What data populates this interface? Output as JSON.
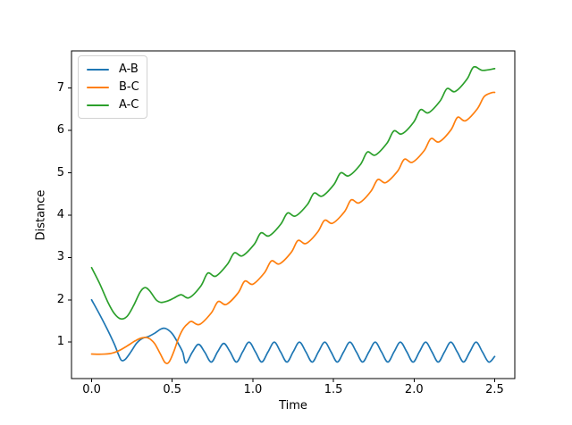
{
  "figure": {
    "background": "#ffffff"
  },
  "chart_data": {
    "type": "line",
    "title": "",
    "xlabel": "Time",
    "ylabel": "Distance",
    "xlim": [
      -0.125,
      2.625
    ],
    "ylim": [
      0.14,
      7.88
    ],
    "grid": false,
    "xticks": {
      "values": [
        0.0,
        0.5,
        1.0,
        1.5,
        2.0,
        2.5
      ],
      "labels": [
        "0.0",
        "0.5",
        "1.0",
        "1.5",
        "2.0",
        "2.5"
      ]
    },
    "yticks": {
      "values": [
        1,
        2,
        3,
        4,
        5,
        6,
        7
      ],
      "labels": [
        "1",
        "2",
        "3",
        "4",
        "5",
        "6",
        "7"
      ]
    },
    "legend": {
      "position": "upper-left",
      "border_color": "#d2d2d2",
      "background": "#ffffff"
    },
    "series": [
      {
        "name": "A-B",
        "color": "#1f77b4",
        "points": [
          [
            0.0,
            2.0
          ],
          [
            0.05,
            1.65
          ],
          [
            0.1,
            1.28
          ],
          [
            0.14,
            0.96
          ],
          [
            0.165,
            0.72
          ],
          [
            0.185,
            0.57
          ],
          [
            0.21,
            0.6
          ],
          [
            0.245,
            0.78
          ],
          [
            0.28,
            0.98
          ],
          [
            0.315,
            1.09
          ],
          [
            0.35,
            1.13
          ],
          [
            0.39,
            1.21
          ],
          [
            0.43,
            1.31
          ],
          [
            0.46,
            1.32
          ],
          [
            0.5,
            1.2
          ],
          [
            0.54,
            0.95
          ],
          [
            0.565,
            0.76
          ],
          [
            0.585,
            0.51
          ],
          [
            0.624,
            0.76
          ],
          [
            0.663,
            0.95
          ],
          [
            0.702,
            0.76
          ],
          [
            0.742,
            0.53
          ],
          [
            0.781,
            0.77
          ],
          [
            0.82,
            0.97
          ],
          [
            0.859,
            0.77
          ],
          [
            0.898,
            0.53
          ],
          [
            0.937,
            0.77
          ],
          [
            0.976,
            1.0
          ],
          [
            1.016,
            0.77
          ],
          [
            1.055,
            0.53
          ],
          [
            1.094,
            0.77
          ],
          [
            1.133,
            1.0
          ],
          [
            1.172,
            0.77
          ],
          [
            1.211,
            0.53
          ],
          [
            1.25,
            0.77
          ],
          [
            1.289,
            1.0
          ],
          [
            1.329,
            0.77
          ],
          [
            1.368,
            0.53
          ],
          [
            1.407,
            0.77
          ],
          [
            1.446,
            1.0
          ],
          [
            1.485,
            0.77
          ],
          [
            1.524,
            0.53
          ],
          [
            1.563,
            0.77
          ],
          [
            1.602,
            1.0
          ],
          [
            1.642,
            0.77
          ],
          [
            1.681,
            0.53
          ],
          [
            1.72,
            0.77
          ],
          [
            1.759,
            1.0
          ],
          [
            1.798,
            0.77
          ],
          [
            1.837,
            0.53
          ],
          [
            1.876,
            0.77
          ],
          [
            1.915,
            1.0
          ],
          [
            1.955,
            0.77
          ],
          [
            1.994,
            0.53
          ],
          [
            2.033,
            0.77
          ],
          [
            2.072,
            1.0
          ],
          [
            2.111,
            0.77
          ],
          [
            2.15,
            0.53
          ],
          [
            2.189,
            0.77
          ],
          [
            2.228,
            1.0
          ],
          [
            2.268,
            0.77
          ],
          [
            2.307,
            0.53
          ],
          [
            2.346,
            0.77
          ],
          [
            2.385,
            1.0
          ],
          [
            2.424,
            0.77
          ],
          [
            2.463,
            0.53
          ],
          [
            2.5,
            0.66
          ]
        ]
      },
      {
        "name": "B-C",
        "color": "#ff7f0e",
        "points": [
          [
            0.0,
            0.72
          ],
          [
            0.06,
            0.715
          ],
          [
            0.12,
            0.735
          ],
          [
            0.17,
            0.8
          ],
          [
            0.22,
            0.91
          ],
          [
            0.27,
            1.03
          ],
          [
            0.31,
            1.1
          ],
          [
            0.35,
            1.1
          ],
          [
            0.39,
            0.97
          ],
          [
            0.425,
            0.73
          ],
          [
            0.455,
            0.52
          ],
          [
            0.48,
            0.53
          ],
          [
            0.51,
            0.78
          ],
          [
            0.54,
            1.1
          ],
          [
            0.57,
            1.33
          ],
          [
            0.6,
            1.45
          ],
          [
            0.62,
            1.49
          ],
          [
            0.67,
            1.42
          ],
          [
            0.742,
            1.69
          ],
          [
            0.785,
            1.96
          ],
          [
            0.835,
            1.89
          ],
          [
            0.908,
            2.16
          ],
          [
            0.95,
            2.44
          ],
          [
            1.0,
            2.37
          ],
          [
            1.072,
            2.64
          ],
          [
            1.115,
            2.92
          ],
          [
            1.165,
            2.85
          ],
          [
            1.238,
            3.12
          ],
          [
            1.28,
            3.4
          ],
          [
            1.33,
            3.33
          ],
          [
            1.402,
            3.6
          ],
          [
            1.445,
            3.88
          ],
          [
            1.495,
            3.81
          ],
          [
            1.568,
            4.08
          ],
          [
            1.61,
            4.36
          ],
          [
            1.66,
            4.29
          ],
          [
            1.732,
            4.56
          ],
          [
            1.775,
            4.84
          ],
          [
            1.825,
            4.77
          ],
          [
            1.898,
            5.04
          ],
          [
            1.94,
            5.32
          ],
          [
            1.99,
            5.25
          ],
          [
            2.062,
            5.52
          ],
          [
            2.105,
            5.81
          ],
          [
            2.155,
            5.73
          ],
          [
            2.228,
            6.01
          ],
          [
            2.27,
            6.31
          ],
          [
            2.32,
            6.23
          ],
          [
            2.392,
            6.51
          ],
          [
            2.435,
            6.8
          ],
          [
            2.48,
            6.89
          ],
          [
            2.5,
            6.9
          ]
        ]
      },
      {
        "name": "A-C",
        "color": "#2ca02c",
        "points": [
          [
            0.0,
            2.76
          ],
          [
            0.05,
            2.38
          ],
          [
            0.1,
            1.95
          ],
          [
            0.14,
            1.68
          ],
          [
            0.18,
            1.55
          ],
          [
            0.22,
            1.61
          ],
          [
            0.26,
            1.86
          ],
          [
            0.3,
            2.18
          ],
          [
            0.33,
            2.29
          ],
          [
            0.36,
            2.21
          ],
          [
            0.4,
            2.0
          ],
          [
            0.43,
            1.94
          ],
          [
            0.47,
            1.97
          ],
          [
            0.51,
            2.04
          ],
          [
            0.555,
            2.12
          ],
          [
            0.605,
            2.05
          ],
          [
            0.678,
            2.33
          ],
          [
            0.72,
            2.63
          ],
          [
            0.77,
            2.56
          ],
          [
            0.842,
            2.84
          ],
          [
            0.885,
            3.11
          ],
          [
            0.935,
            3.04
          ],
          [
            1.008,
            3.31
          ],
          [
            1.05,
            3.58
          ],
          [
            1.1,
            3.51
          ],
          [
            1.172,
            3.78
          ],
          [
            1.215,
            4.05
          ],
          [
            1.265,
            3.98
          ],
          [
            1.338,
            4.25
          ],
          [
            1.38,
            4.52
          ],
          [
            1.43,
            4.45
          ],
          [
            1.502,
            4.72
          ],
          [
            1.545,
            5.0
          ],
          [
            1.595,
            4.93
          ],
          [
            1.668,
            5.2
          ],
          [
            1.71,
            5.49
          ],
          [
            1.76,
            5.42
          ],
          [
            1.832,
            5.7
          ],
          [
            1.875,
            5.99
          ],
          [
            1.925,
            5.92
          ],
          [
            1.998,
            6.2
          ],
          [
            2.04,
            6.49
          ],
          [
            2.09,
            6.42
          ],
          [
            2.162,
            6.7
          ],
          [
            2.205,
            6.99
          ],
          [
            2.255,
            6.92
          ],
          [
            2.328,
            7.21
          ],
          [
            2.37,
            7.5
          ],
          [
            2.425,
            7.42
          ],
          [
            2.5,
            7.46
          ]
        ]
      }
    ]
  }
}
